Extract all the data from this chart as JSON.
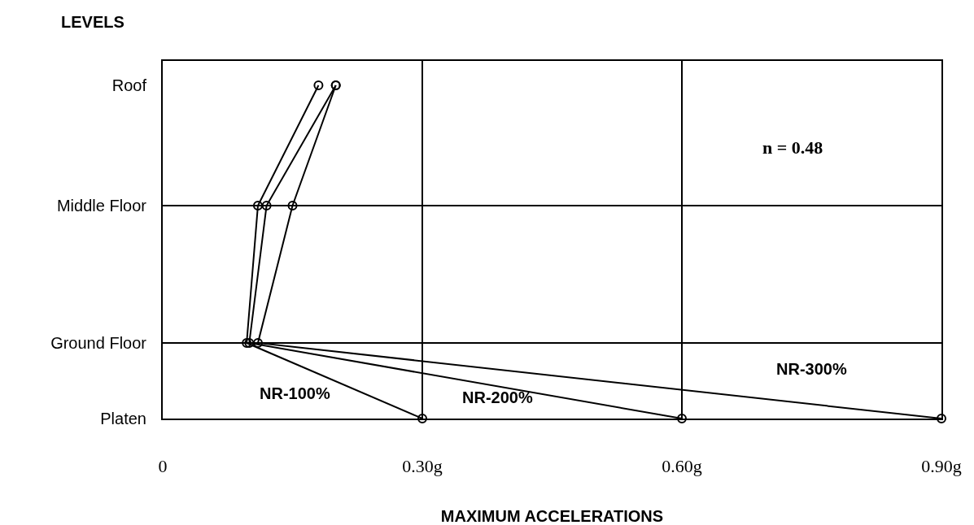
{
  "chart_data": {
    "type": "line",
    "orientation": "horizontal",
    "xlabel": "MAXIMUM ACCELERATIONS",
    "ylabel": "LEVELS",
    "annotations": [
      "n = 0.48"
    ],
    "categories": [
      "Roof",
      "Middle Floor",
      "Ground Floor",
      "Platen"
    ],
    "series": [
      {
        "name": "NR-100%",
        "color": "#000000",
        "values": [
          0.18,
          0.11,
          0.097,
          0.3
        ]
      },
      {
        "name": "NR-200%",
        "color": "#000000",
        "values": [
          0.2,
          0.12,
          0.1,
          0.6
        ]
      },
      {
        "name": "NR-300%",
        "color": "#000000",
        "values": [
          0.2,
          0.15,
          0.11,
          0.9
        ]
      }
    ],
    "xlim": [
      0,
      0.9
    ],
    "xticks": [
      {
        "value": 0,
        "label": "0"
      },
      {
        "value": 0.3,
        "label": "0.30g"
      },
      {
        "value": 0.6,
        "label": "0.60g"
      },
      {
        "value": 0.9,
        "label": "0.90g"
      }
    ],
    "ref_lines": [
      {
        "axis": "y",
        "value": "Middle Floor",
        "color": "#000000"
      },
      {
        "axis": "y",
        "value": "Ground Floor",
        "color": "#000000"
      }
    ],
    "grid": "x",
    "marker": "circle",
    "line_style": "solid",
    "legend": false
  }
}
